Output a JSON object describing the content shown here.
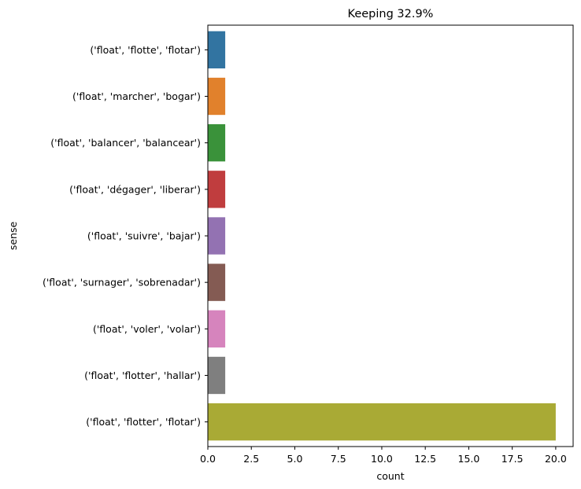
{
  "chart_data": {
    "type": "bar",
    "orientation": "horizontal",
    "title": "Keeping 32.9%",
    "xlabel": "count",
    "ylabel": "sense",
    "xlim": [
      0,
      21
    ],
    "xticks": [
      "0.0",
      "2.5",
      "5.0",
      "7.5",
      "10.0",
      "12.5",
      "15.0",
      "17.5",
      "20.0"
    ],
    "grid": false,
    "legend": "none",
    "categories": [
      "('float', 'flotte', 'flotar')",
      "('float', 'marcher', 'bogar')",
      "('float', 'balancer', 'balancear')",
      "('float', 'dégager', 'liberar')",
      "('float', 'suivre', 'bajar')",
      "('float', 'surnager', 'sobrenadar')",
      "('float', 'voler', 'volar')",
      "('float', 'flotter', 'hallar')",
      "('float', 'flotter', 'flotar')"
    ],
    "values": [
      1,
      1,
      1,
      1,
      1,
      1,
      1,
      1,
      20
    ],
    "colors": [
      "#3274a1",
      "#e1812c",
      "#3a923a",
      "#c03d3e",
      "#9372b2",
      "#845b53",
      "#d684bd",
      "#7f7f7f",
      "#a9aa35"
    ]
  }
}
